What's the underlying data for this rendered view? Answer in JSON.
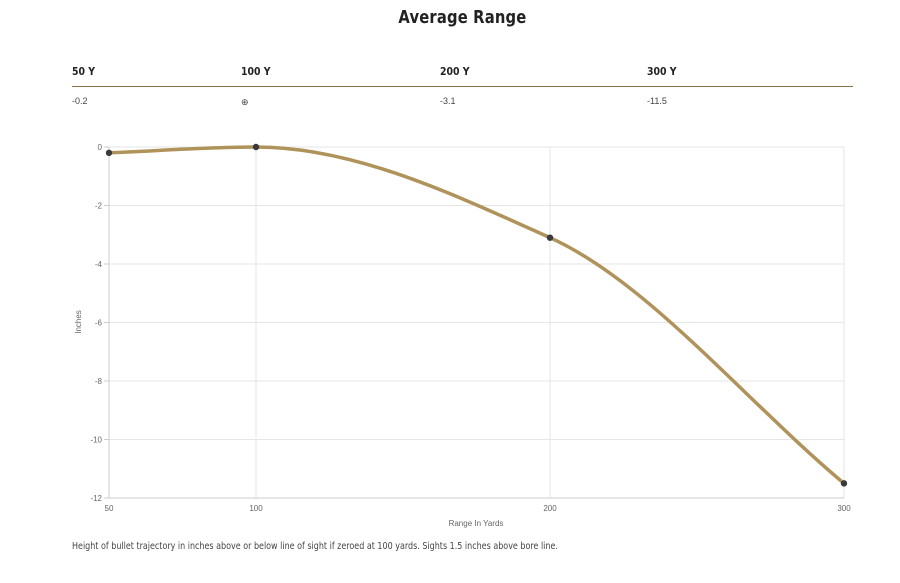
{
  "title": "Average Range",
  "table": {
    "headers": [
      "50 Y",
      "100 Y",
      "200 Y",
      "300 Y"
    ],
    "values": [
      "-0.2",
      "⊕",
      "-3.1",
      "-11.5"
    ]
  },
  "chart_data": {
    "type": "line",
    "xlabel": "Range In Yards",
    "ylabel": "Inches",
    "x": [
      50,
      100,
      200,
      300
    ],
    "series": [
      {
        "values": [
          -0.2,
          0,
          -3.1,
          -11.5
        ]
      }
    ],
    "xticks": [
      50,
      100,
      200,
      300
    ],
    "yticks": [
      0,
      -2,
      -4,
      -6,
      -8,
      -10,
      -12
    ],
    "xlim": [
      50,
      300
    ],
    "ylim": [
      -12,
      0
    ],
    "grid": true,
    "line_color": "#b0935a",
    "point_color": "#3a3a3a"
  },
  "footnote": "Height of bullet trajectory in inches above or below line of sight if zeroed at 100 yards. Sights 1.5 inches above bore line."
}
